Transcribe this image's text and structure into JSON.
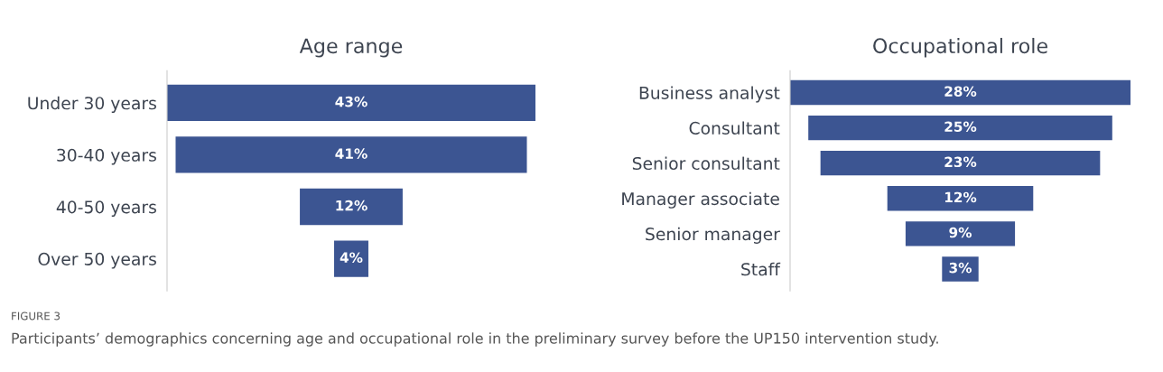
{
  "chart_data": [
    {
      "type": "other",
      "title": "Age range",
      "categories": [
        "Under 30 years",
        "30-40 years",
        "40-50 years",
        "Over 50 years"
      ],
      "values": [
        43,
        41,
        12,
        4
      ],
      "value_labels": [
        "43%",
        "41%",
        "12%",
        "4%"
      ],
      "color": "#3c5592",
      "annotations": [
        "FIGURE 3",
        "Participants’ demographics concerning age and occupational role in the preliminary survey before the UP150 intervention study."
      ]
    },
    {
      "type": "other",
      "title": "Occupational role",
      "categories": [
        "Business analyst",
        "Consultant",
        "Senior consultant",
        "Manager associate",
        "Senior manager",
        "Staff"
      ],
      "values": [
        28,
        25,
        23,
        12,
        9,
        3
      ],
      "value_labels": [
        "28%",
        "25%",
        "23%",
        "12%",
        "9%",
        "3%"
      ],
      "color": "#3c5592"
    }
  ]
}
